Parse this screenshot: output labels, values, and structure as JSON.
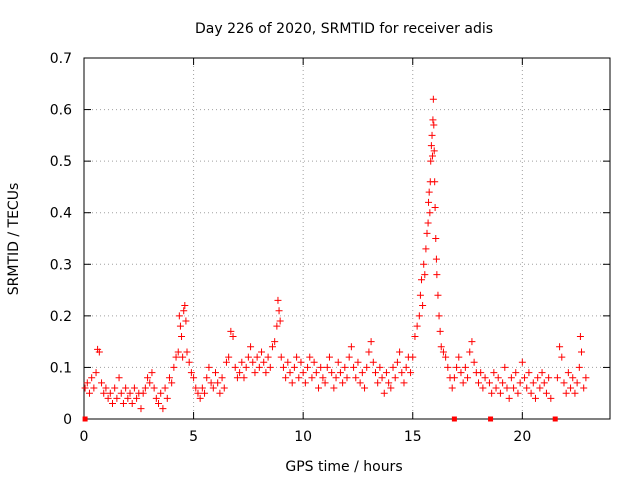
{
  "chart_data": {
    "type": "scatter",
    "title": "Day 226 of 2020, SRMTID for receiver adis",
    "xlabel": "GPS time / hours",
    "ylabel": "SRMTID / TECUs",
    "xlim": [
      0,
      24
    ],
    "ylim": [
      0,
      0.7
    ],
    "xticks": [
      0,
      5,
      10,
      15,
      20
    ],
    "yticks": [
      0,
      0.1,
      0.2,
      0.3,
      0.4,
      0.5,
      0.6,
      0.7
    ],
    "xtick_labels": [
      "0",
      "5",
      "10",
      "15",
      "20"
    ],
    "ytick_labels": [
      "0",
      "0.1",
      "0.2",
      "0.3",
      "0.4",
      "0.5",
      "0.6",
      "0.7"
    ],
    "grid": true,
    "marker": "plus",
    "series_color": "#ff0000",
    "series": [
      {
        "name": "SRMTID",
        "points": [
          [
            0.05,
            0.06
          ],
          [
            0.15,
            0.07
          ],
          [
            0.25,
            0.05
          ],
          [
            0.35,
            0.08
          ],
          [
            0.45,
            0.06
          ],
          [
            0.55,
            0.09
          ],
          [
            0.62,
            0.135
          ],
          [
            0.7,
            0.13
          ],
          [
            0.8,
            0.07
          ],
          [
            0.9,
            0.05
          ],
          [
            1.0,
            0.06
          ],
          [
            1.1,
            0.04
          ],
          [
            1.2,
            0.05
          ],
          [
            1.3,
            0.03
          ],
          [
            1.4,
            0.06
          ],
          [
            1.5,
            0.04
          ],
          [
            1.6,
            0.08
          ],
          [
            1.7,
            0.05
          ],
          [
            1.8,
            0.03
          ],
          [
            1.9,
            0.06
          ],
          [
            2.0,
            0.04
          ],
          [
            2.1,
            0.05
          ],
          [
            2.2,
            0.03
          ],
          [
            2.3,
            0.06
          ],
          [
            2.4,
            0.04
          ],
          [
            2.5,
            0.05
          ],
          [
            2.6,
            0.02
          ],
          [
            2.7,
            0.05
          ],
          [
            2.8,
            0.06
          ],
          [
            2.9,
            0.08
          ],
          [
            3.0,
            0.07
          ],
          [
            3.1,
            0.09
          ],
          [
            3.2,
            0.06
          ],
          [
            3.3,
            0.04
          ],
          [
            3.4,
            0.03
          ],
          [
            3.5,
            0.05
          ],
          [
            3.6,
            0.02
          ],
          [
            3.7,
            0.06
          ],
          [
            3.8,
            0.04
          ],
          [
            3.9,
            0.08
          ],
          [
            4.0,
            0.07
          ],
          [
            4.1,
            0.1
          ],
          [
            4.2,
            0.12
          ],
          [
            4.3,
            0.13
          ],
          [
            4.35,
            0.2
          ],
          [
            4.4,
            0.18
          ],
          [
            4.45,
            0.16
          ],
          [
            4.5,
            0.12
          ],
          [
            4.55,
            0.21
          ],
          [
            4.6,
            0.22
          ],
          [
            4.65,
            0.19
          ],
          [
            4.7,
            0.13
          ],
          [
            4.8,
            0.11
          ],
          [
            4.9,
            0.09
          ],
          [
            5.0,
            0.08
          ],
          [
            5.1,
            0.06
          ],
          [
            5.2,
            0.05
          ],
          [
            5.3,
            0.04
          ],
          [
            5.4,
            0.06
          ],
          [
            5.5,
            0.05
          ],
          [
            5.6,
            0.08
          ],
          [
            5.7,
            0.1
          ],
          [
            5.8,
            0.07
          ],
          [
            5.9,
            0.06
          ],
          [
            6.0,
            0.09
          ],
          [
            6.1,
            0.07
          ],
          [
            6.2,
            0.05
          ],
          [
            6.3,
            0.08
          ],
          [
            6.4,
            0.06
          ],
          [
            6.5,
            0.11
          ],
          [
            6.6,
            0.12
          ],
          [
            6.7,
            0.17
          ],
          [
            6.8,
            0.16
          ],
          [
            6.9,
            0.1
          ],
          [
            7.0,
            0.08
          ],
          [
            7.1,
            0.09
          ],
          [
            7.2,
            0.11
          ],
          [
            7.3,
            0.08
          ],
          [
            7.4,
            0.1
          ],
          [
            7.5,
            0.12
          ],
          [
            7.6,
            0.14
          ],
          [
            7.7,
            0.11
          ],
          [
            7.8,
            0.09
          ],
          [
            7.9,
            0.12
          ],
          [
            8.0,
            0.1
          ],
          [
            8.1,
            0.13
          ],
          [
            8.2,
            0.11
          ],
          [
            8.3,
            0.09
          ],
          [
            8.4,
            0.12
          ],
          [
            8.5,
            0.1
          ],
          [
            8.6,
            0.14
          ],
          [
            8.7,
            0.15
          ],
          [
            8.8,
            0.18
          ],
          [
            8.85,
            0.23
          ],
          [
            8.9,
            0.21
          ],
          [
            8.95,
            0.19
          ],
          [
            9.0,
            0.12
          ],
          [
            9.1,
            0.1
          ],
          [
            9.2,
            0.08
          ],
          [
            9.3,
            0.11
          ],
          [
            9.4,
            0.09
          ],
          [
            9.5,
            0.07
          ],
          [
            9.6,
            0.1
          ],
          [
            9.7,
            0.12
          ],
          [
            9.8,
            0.08
          ],
          [
            9.9,
            0.11
          ],
          [
            10.0,
            0.09
          ],
          [
            10.1,
            0.07
          ],
          [
            10.2,
            0.1
          ],
          [
            10.3,
            0.12
          ],
          [
            10.4,
            0.08
          ],
          [
            10.5,
            0.11
          ],
          [
            10.6,
            0.09
          ],
          [
            10.7,
            0.06
          ],
          [
            10.8,
            0.1
          ],
          [
            10.9,
            0.08
          ],
          [
            11.0,
            0.07
          ],
          [
            11.1,
            0.1
          ],
          [
            11.2,
            0.12
          ],
          [
            11.3,
            0.09
          ],
          [
            11.4,
            0.06
          ],
          [
            11.5,
            0.08
          ],
          [
            11.6,
            0.11
          ],
          [
            11.7,
            0.09
          ],
          [
            11.8,
            0.07
          ],
          [
            11.9,
            0.1
          ],
          [
            12.0,
            0.08
          ],
          [
            12.1,
            0.12
          ],
          [
            12.2,
            0.14
          ],
          [
            12.3,
            0.1
          ],
          [
            12.4,
            0.08
          ],
          [
            12.5,
            0.11
          ],
          [
            12.6,
            0.07
          ],
          [
            12.7,
            0.09
          ],
          [
            12.8,
            0.06
          ],
          [
            12.9,
            0.1
          ],
          [
            13.0,
            0.13
          ],
          [
            13.1,
            0.15
          ],
          [
            13.2,
            0.11
          ],
          [
            13.3,
            0.09
          ],
          [
            13.4,
            0.07
          ],
          [
            13.5,
            0.1
          ],
          [
            13.6,
            0.08
          ],
          [
            13.7,
            0.05
          ],
          [
            13.8,
            0.09
          ],
          [
            13.9,
            0.07
          ],
          [
            14.0,
            0.06
          ],
          [
            14.1,
            0.1
          ],
          [
            14.2,
            0.08
          ],
          [
            14.3,
            0.11
          ],
          [
            14.4,
            0.13
          ],
          [
            14.5,
            0.09
          ],
          [
            14.6,
            0.07
          ],
          [
            14.7,
            0.1
          ],
          [
            14.8,
            0.12
          ],
          [
            14.9,
            0.09
          ],
          [
            15.0,
            0.12
          ],
          [
            15.1,
            0.16
          ],
          [
            15.2,
            0.18
          ],
          [
            15.3,
            0.2
          ],
          [
            15.35,
            0.24
          ],
          [
            15.4,
            0.27
          ],
          [
            15.45,
            0.22
          ],
          [
            15.5,
            0.3
          ],
          [
            15.55,
            0.28
          ],
          [
            15.6,
            0.33
          ],
          [
            15.65,
            0.36
          ],
          [
            15.7,
            0.38
          ],
          [
            15.72,
            0.42
          ],
          [
            15.75,
            0.44
          ],
          [
            15.78,
            0.4
          ],
          [
            15.8,
            0.46
          ],
          [
            15.82,
            0.5
          ],
          [
            15.85,
            0.53
          ],
          [
            15.88,
            0.55
          ],
          [
            15.9,
            0.51
          ],
          [
            15.92,
            0.58
          ],
          [
            15.94,
            0.62
          ],
          [
            15.96,
            0.57
          ],
          [
            15.98,
            0.52
          ],
          [
            16.0,
            0.46
          ],
          [
            16.02,
            0.41
          ],
          [
            16.05,
            0.35
          ],
          [
            16.08,
            0.31
          ],
          [
            16.1,
            0.28
          ],
          [
            16.15,
            0.24
          ],
          [
            16.2,
            0.2
          ],
          [
            16.25,
            0.17
          ],
          [
            16.3,
            0.14
          ],
          [
            16.4,
            0.13
          ],
          [
            16.5,
            0.12
          ],
          [
            16.6,
            0.1
          ],
          [
            16.7,
            0.08
          ],
          [
            16.8,
            0.06
          ],
          [
            16.9,
            0.08
          ],
          [
            17.0,
            0.1
          ],
          [
            17.1,
            0.12
          ],
          [
            17.2,
            0.09
          ],
          [
            17.3,
            0.07
          ],
          [
            17.4,
            0.1
          ],
          [
            17.5,
            0.08
          ],
          [
            17.6,
            0.13
          ],
          [
            17.7,
            0.15
          ],
          [
            17.8,
            0.11
          ],
          [
            17.9,
            0.09
          ],
          [
            18.0,
            0.07
          ],
          [
            18.1,
            0.09
          ],
          [
            18.2,
            0.06
          ],
          [
            18.3,
            0.08
          ],
          [
            18.5,
            0.07
          ],
          [
            18.6,
            0.05
          ],
          [
            18.7,
            0.09
          ],
          [
            18.8,
            0.06
          ],
          [
            18.9,
            0.08
          ],
          [
            19.0,
            0.05
          ],
          [
            19.1,
            0.07
          ],
          [
            19.2,
            0.1
          ],
          [
            19.3,
            0.06
          ],
          [
            19.4,
            0.04
          ],
          [
            19.5,
            0.08
          ],
          [
            19.6,
            0.06
          ],
          [
            19.7,
            0.09
          ],
          [
            19.8,
            0.05
          ],
          [
            19.9,
            0.07
          ],
          [
            20.0,
            0.11
          ],
          [
            20.1,
            0.08
          ],
          [
            20.2,
            0.06
          ],
          [
            20.3,
            0.09
          ],
          [
            20.4,
            0.05
          ],
          [
            20.5,
            0.07
          ],
          [
            20.6,
            0.04
          ],
          [
            20.7,
            0.08
          ],
          [
            20.8,
            0.06
          ],
          [
            20.9,
            0.09
          ],
          [
            21.0,
            0.07
          ],
          [
            21.1,
            0.05
          ],
          [
            21.2,
            0.08
          ],
          [
            21.3,
            0.04
          ],
          [
            21.6,
            0.08
          ],
          [
            21.7,
            0.14
          ],
          [
            21.8,
            0.12
          ],
          [
            21.9,
            0.07
          ],
          [
            22.0,
            0.05
          ],
          [
            22.1,
            0.09
          ],
          [
            22.2,
            0.06
          ],
          [
            22.3,
            0.08
          ],
          [
            22.4,
            0.05
          ],
          [
            22.5,
            0.07
          ],
          [
            22.6,
            0.1
          ],
          [
            22.65,
            0.16
          ],
          [
            22.7,
            0.13
          ],
          [
            22.8,
            0.06
          ],
          [
            22.9,
            0.08
          ]
        ]
      }
    ],
    "gap_markers_x": [
      0.05,
      16.9,
      18.55,
      21.5
    ]
  }
}
